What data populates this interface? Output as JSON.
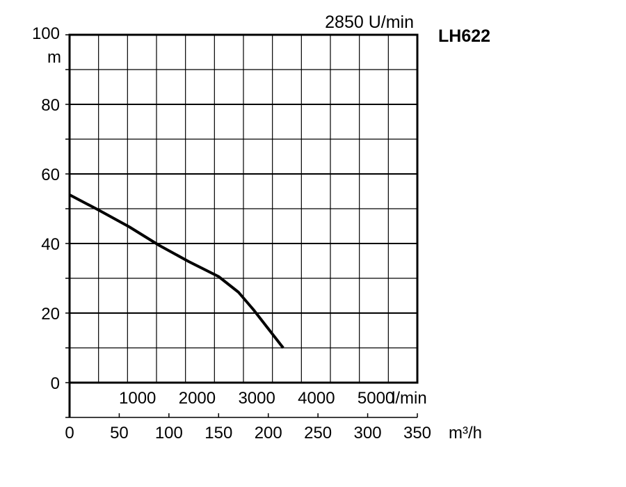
{
  "chart_data": {
    "type": "line",
    "title": "2850 U/min",
    "model": "LH622",
    "ylabel": "m",
    "ylim": [
      0,
      100
    ],
    "y_ticks": [
      "0",
      "20",
      "40",
      "60",
      "80",
      "100"
    ],
    "x_unit_secondary": "l/min",
    "x_ticks_secondary": [
      "1000",
      "2000",
      "3000",
      "4000",
      "5000"
    ],
    "x_unit": "m³/h",
    "xlim": [
      0,
      350
    ],
    "x_ticks": [
      "0",
      "50",
      "100",
      "150",
      "200",
      "250",
      "300",
      "350"
    ],
    "grid": true,
    "series": [
      {
        "x": [
          0,
          30,
          60,
          90,
          120,
          150,
          170,
          185,
          200,
          215
        ],
        "y": [
          54,
          49.5,
          44.8,
          39.5,
          34.8,
          30.5,
          26,
          21,
          15.5,
          10
        ]
      }
    ]
  }
}
